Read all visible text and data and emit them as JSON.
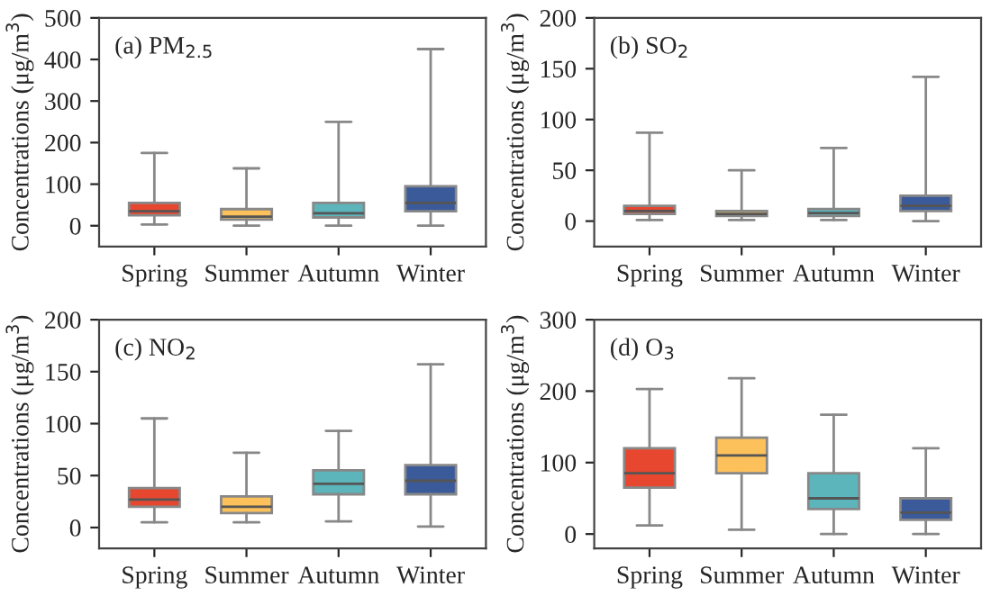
{
  "chart_data": [
    {
      "type": "box",
      "title": "(a) PM$_{2.5}$",
      "ylabel": "Concentrations (μg/m$^{3}$)",
      "categories": [
        "Spring",
        "Summer",
        "Autumn",
        "Winter"
      ],
      "colors": [
        "#e8472f",
        "#fdc15c",
        "#5bb5bb",
        "#3a5a9a"
      ],
      "ylim": [
        -50,
        500
      ],
      "yticks": [
        0,
        100,
        200,
        300,
        400,
        500
      ],
      "grid": false,
      "legend": false,
      "boxes": [
        {
          "low": 3,
          "q1": 25,
          "median": 35,
          "q3": 55,
          "high": 175
        },
        {
          "low": 0,
          "q1": 15,
          "median": 22,
          "q3": 40,
          "high": 138
        },
        {
          "low": 0,
          "q1": 20,
          "median": 30,
          "q3": 55,
          "high": 250
        },
        {
          "low": 0,
          "q1": 35,
          "median": 55,
          "q3": 95,
          "high": 425
        }
      ]
    },
    {
      "type": "box",
      "title": "(b) SO$_{2}$",
      "ylabel": "Concentrations (μg/m$^{3}$)",
      "categories": [
        "Spring",
        "Summer",
        "Autumn",
        "Winter"
      ],
      "colors": [
        "#e8472f",
        "#fdc15c",
        "#5bb5bb",
        "#3a5a9a"
      ],
      "ylim": [
        -25,
        200
      ],
      "yticks": [
        0,
        50,
        100,
        150,
        200
      ],
      "grid": false,
      "legend": false,
      "boxes": [
        {
          "low": 1,
          "q1": 7,
          "median": 10,
          "q3": 15,
          "high": 87
        },
        {
          "low": 1,
          "q1": 5,
          "median": 7,
          "q3": 10,
          "high": 50
        },
        {
          "low": 1,
          "q1": 5,
          "median": 8,
          "q3": 12,
          "high": 72
        },
        {
          "low": 0,
          "q1": 10,
          "median": 15,
          "q3": 25,
          "high": 142
        }
      ]
    },
    {
      "type": "box",
      "title": "(c) NO$_{2}$",
      "ylabel": "Concentrations (μg/m$^{3}$)",
      "categories": [
        "Spring",
        "Summer",
        "Autumn",
        "Winter"
      ],
      "colors": [
        "#e8472f",
        "#fdc15c",
        "#5bb5bb",
        "#3a5a9a"
      ],
      "ylim": [
        -20,
        200
      ],
      "yticks": [
        0,
        50,
        100,
        150,
        200
      ],
      "grid": false,
      "legend": false,
      "boxes": [
        {
          "low": 5,
          "q1": 20,
          "median": 27,
          "q3": 38,
          "high": 105
        },
        {
          "low": 5,
          "q1": 14,
          "median": 20,
          "q3": 30,
          "high": 72
        },
        {
          "low": 6,
          "q1": 32,
          "median": 42,
          "q3": 55,
          "high": 93
        },
        {
          "low": 1,
          "q1": 32,
          "median": 45,
          "q3": 60,
          "high": 157
        }
      ]
    },
    {
      "type": "box",
      "title": "(d) O$_{3}$",
      "ylabel": "Concentrations (μg/m$^{3}$)",
      "categories": [
        "Spring",
        "Summer",
        "Autumn",
        "Winter"
      ],
      "colors": [
        "#e8472f",
        "#fdc15c",
        "#5bb5bb",
        "#3a5a9a"
      ],
      "ylim": [
        -20,
        300
      ],
      "yticks": [
        0,
        100,
        200,
        300
      ],
      "grid": false,
      "legend": false,
      "boxes": [
        {
          "low": 12,
          "q1": 65,
          "median": 85,
          "q3": 120,
          "high": 203
        },
        {
          "low": 6,
          "q1": 85,
          "median": 110,
          "q3": 135,
          "high": 218
        },
        {
          "low": 0,
          "q1": 35,
          "median": 50,
          "q3": 85,
          "high": 167
        },
        {
          "low": 0,
          "q1": 20,
          "median": 30,
          "q3": 50,
          "high": 120
        }
      ]
    }
  ]
}
